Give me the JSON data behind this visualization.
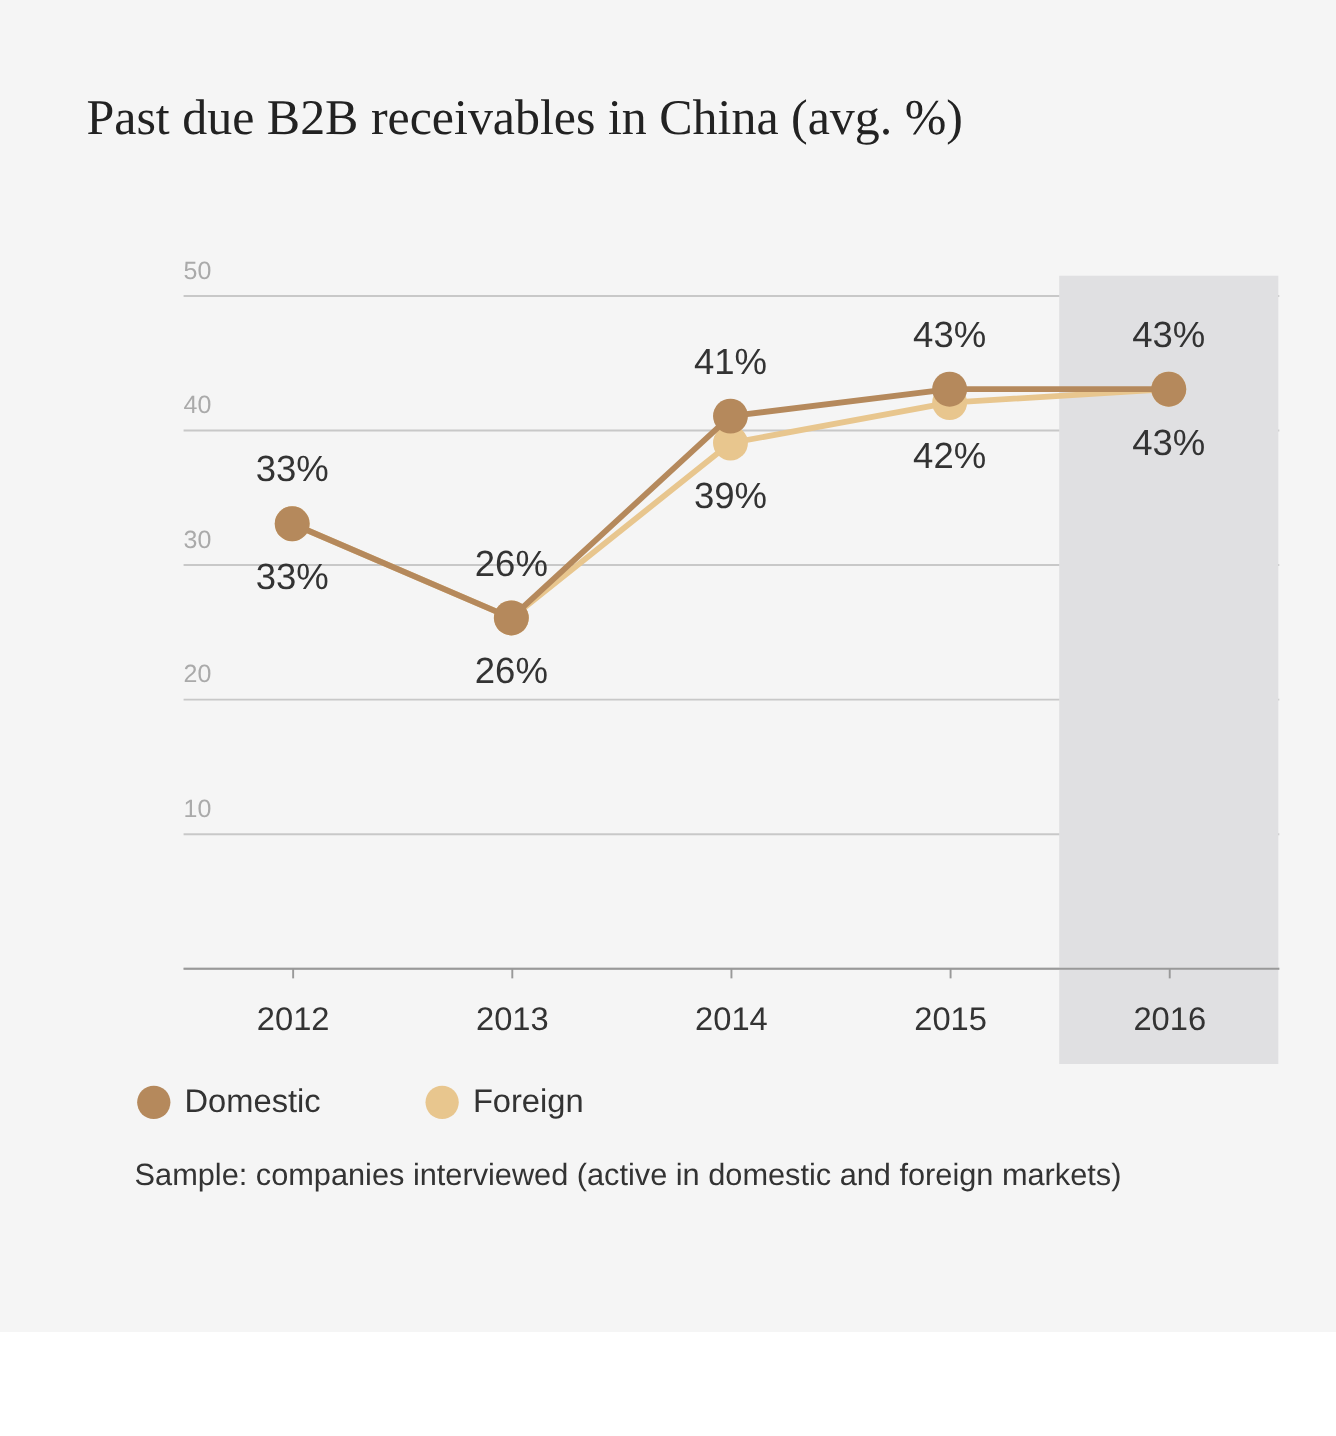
{
  "chart_data": {
    "type": "line",
    "title": "Past due B2B receivables in China (avg. %)",
    "x": [
      2012,
      2013,
      2014,
      2015,
      2016
    ],
    "xlim": [
      2011.5,
      2016.5
    ],
    "xticks": [
      2012,
      2013,
      2014,
      2015,
      2016
    ],
    "ylim": [
      0,
      50
    ],
    "yticks": [
      {
        "value": 0,
        "label": null
      },
      10,
      20,
      30,
      40,
      50
    ],
    "series": [
      {
        "name": "Domestic",
        "color": "#b5895c",
        "values": [
          33,
          26,
          41,
          43,
          43
        ],
        "value_labels": [
          "33%",
          "26%",
          "41%",
          "43%",
          "43%"
        ]
      },
      {
        "name": "Foreign",
        "color": "#e8c68e",
        "values": [
          33,
          26,
          39,
          42,
          43
        ],
        "value_labels": [
          "33%",
          "26%",
          "39%",
          "42%",
          "43%"
        ]
      }
    ],
    "bands": [
      {
        "axis": "x",
        "from": 2015.5,
        "to": 2016.5,
        "color": "#e0e0e2"
      }
    ],
    "grid": "y",
    "legend": "bottom left",
    "marker": "circle",
    "line_style": "solid",
    "annotations": [
      "Sample: companies interviewed (active in domestic and foreign markets)"
    ]
  }
}
